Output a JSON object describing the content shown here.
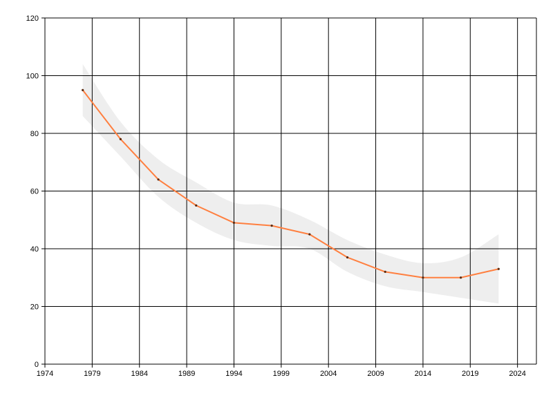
{
  "chart_data": {
    "type": "line",
    "title": "",
    "xlabel": "",
    "ylabel": "",
    "xlim": [
      1974,
      2026
    ],
    "ylim": [
      0,
      120
    ],
    "grid": true,
    "legend": "none",
    "x_ticks": [
      1974,
      1979,
      1984,
      1989,
      1994,
      1999,
      2004,
      2009,
      2014,
      2019,
      2024
    ],
    "x_tick_labels": [
      "1974",
      "1979",
      "1984",
      "1989",
      "1994",
      "1999",
      "2004",
      "2009",
      "2014",
      "2019",
      "2024"
    ],
    "y_ticks": [
      0,
      20,
      40,
      60,
      80,
      100,
      120
    ],
    "y_tick_labels": [
      "0",
      "20",
      "40",
      "60",
      "80",
      "100",
      "120"
    ],
    "series": [
      {
        "x": [
          1978,
          1982,
          1986,
          1990,
          1994,
          1998,
          2002,
          2006,
          2010,
          2014,
          2018,
          2022
        ],
        "values": [
          95,
          78,
          64,
          55,
          49,
          48,
          45,
          37,
          32,
          30,
          30,
          33
        ],
        "color": "#ff7f3f"
      }
    ],
    "band": {
      "x": [
        1978,
        1982,
        1986,
        1990,
        1994,
        1998,
        2002,
        2006,
        2010,
        2014,
        2018,
        2022
      ],
      "upper": [
        104,
        84,
        71,
        63,
        56,
        55,
        50,
        43,
        38,
        35,
        37,
        45
      ],
      "lower": [
        86,
        72,
        58,
        49,
        43,
        41,
        40,
        32,
        27,
        25,
        23,
        21
      ],
      "color": "#eeeeee"
    }
  }
}
